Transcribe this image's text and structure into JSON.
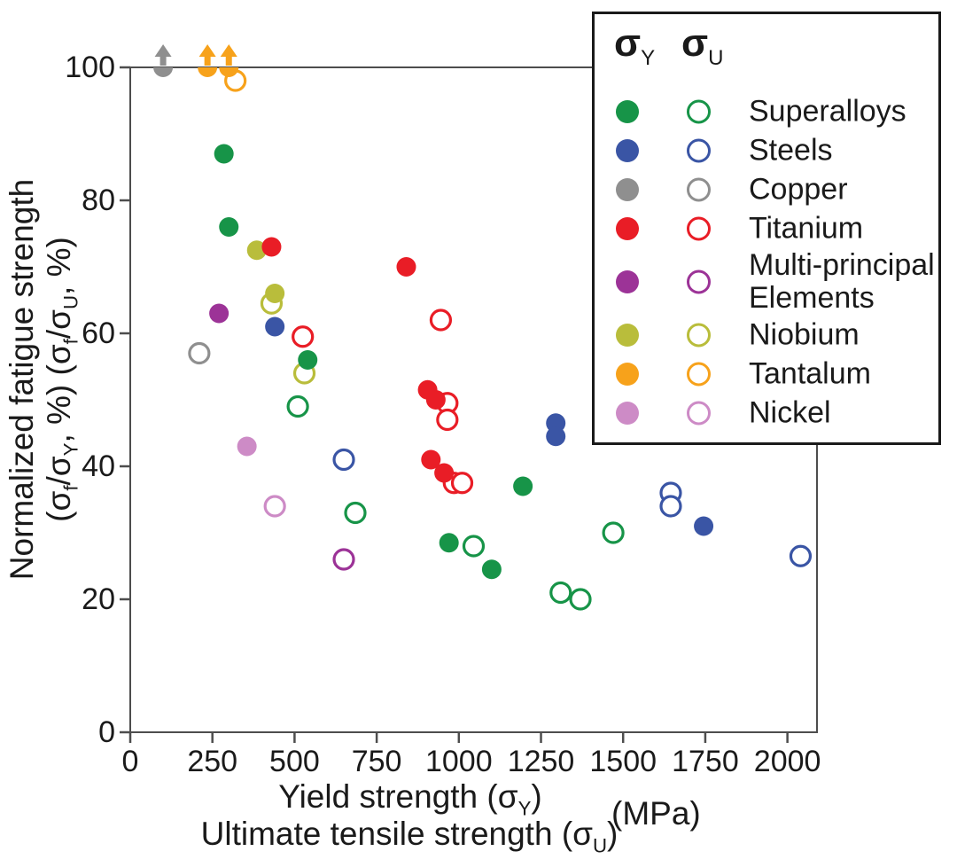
{
  "figure_name": "normalized-fatigue-strength-scatter",
  "chart_data": {
    "type": "scatter",
    "title": "",
    "xlabel_line1": "Yield strength (σ_Y)",
    "xlabel_line2": "Ultimate tensile strength (σ_U)",
    "units_label": "(MPa)",
    "ylabel_line1": "Normalized fatigue strength",
    "ylabel_line2": "(σ_f/σ_Y, %) (σ_f/σ_U, %)",
    "xlim": [
      0,
      2090
    ],
    "ylim": [
      0,
      100
    ],
    "xticks": [
      0,
      250,
      500,
      750,
      1000,
      1250,
      1500,
      1750,
      2000
    ],
    "yticks": [
      0,
      20,
      40,
      60,
      80,
      100
    ],
    "grid": false,
    "legend_position": "top-right",
    "legend_title_filled": "σ_Y",
    "legend_title_open": "σ_U",
    "frame_color": "#4d4d4d",
    "text_color": "#1a1a1a",
    "series": [
      {
        "name": "Superalloys",
        "color": "#179448",
        "z": 0,
        "sigma_y": [
          [
            285,
            87
          ],
          [
            300,
            76
          ],
          [
            540,
            56
          ],
          [
            1195,
            37
          ],
          [
            970,
            28.5
          ],
          [
            1100,
            24.5
          ]
        ],
        "sigma_u": [
          [
            510,
            49
          ],
          [
            685,
            33
          ],
          [
            1045,
            28
          ],
          [
            1470,
            30
          ],
          [
            1310,
            21
          ],
          [
            1370,
            20
          ]
        ]
      },
      {
        "name": "Steels",
        "color": "#3a55a5",
        "z": 0,
        "sigma_y": [
          [
            440,
            61
          ],
          [
            1295,
            46.5
          ],
          [
            1295,
            44.5
          ],
          [
            1745,
            31
          ]
        ],
        "sigma_u": [
          [
            650,
            41
          ],
          [
            1645,
            36
          ],
          [
            1645,
            34
          ],
          [
            2040,
            26.5
          ]
        ]
      },
      {
        "name": "Copper",
        "color": "#8f8f8f",
        "z": 0,
        "sigma_y": [
          [
            100,
            100,
            "up"
          ]
        ],
        "sigma_u": [
          [
            210,
            57
          ]
        ]
      },
      {
        "name": "Titanium",
        "color": "#e91d26",
        "z": 1,
        "sigma_y": [
          [
            430,
            73
          ],
          [
            840,
            70
          ],
          [
            905,
            51.5
          ],
          [
            930,
            50
          ],
          [
            915,
            41
          ],
          [
            955,
            39
          ]
        ],
        "sigma_u": [
          [
            525,
            59.5
          ],
          [
            945,
            62
          ],
          [
            965,
            49.5
          ],
          [
            965,
            47
          ],
          [
            985,
            37.5
          ],
          [
            1010,
            37.5
          ]
        ]
      },
      {
        "name": "Multi-principal Elements",
        "color": "#9c3397",
        "z": 0,
        "sigma_y": [
          [
            270,
            63
          ]
        ],
        "sigma_u": [
          [
            650,
            26
          ]
        ]
      },
      {
        "name": "Niobium",
        "color": "#b9bd3b",
        "z": 0,
        "sigma_y": [
          [
            385,
            72.5
          ],
          [
            440,
            66
          ]
        ],
        "sigma_u": [
          [
            430,
            64.5
          ],
          [
            530,
            54
          ]
        ]
      },
      {
        "name": "Tantalum",
        "color": "#f7a21b",
        "z": 0,
        "sigma_y": [
          [
            235,
            100,
            "up"
          ],
          [
            300,
            100,
            "up"
          ]
        ],
        "sigma_u": [
          [
            320,
            98
          ]
        ]
      },
      {
        "name": "Nickel",
        "color": "#cd8bc6",
        "z": 0,
        "sigma_y": [
          [
            355,
            43
          ]
        ],
        "sigma_u": [
          [
            440,
            34
          ]
        ]
      }
    ]
  }
}
